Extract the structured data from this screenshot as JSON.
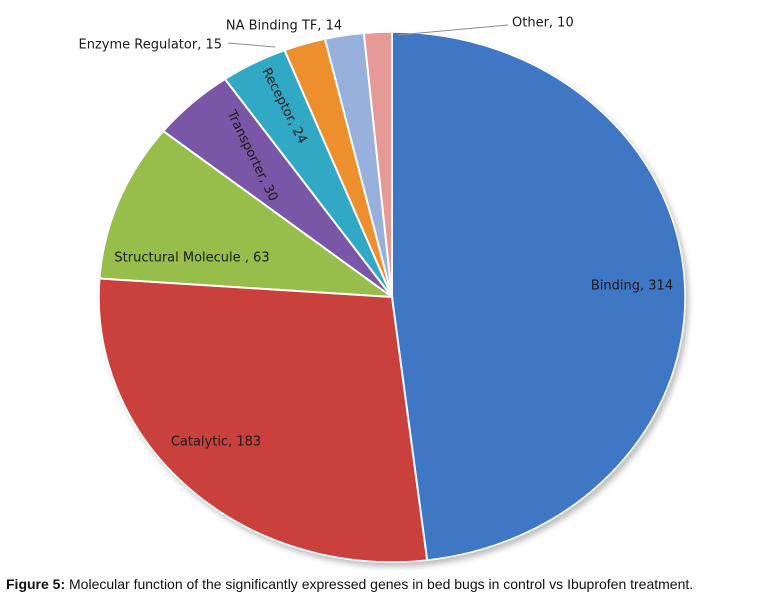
{
  "chart_data": {
    "type": "pie",
    "title": "",
    "slices": [
      {
        "label": "Binding, 314",
        "name": "Binding",
        "value": 314,
        "color": "#3f77c4"
      },
      {
        "label": "Catalytic, 183",
        "name": "Catalytic",
        "value": 183,
        "color": "#c9403c"
      },
      {
        "label": "Structural Molecule , 63",
        "name": "Structural Molecule",
        "value": 63,
        "color": "#97be4c"
      },
      {
        "label": "Transporter, 30",
        "name": "Transporter",
        "value": 30,
        "color": "#7a57a6"
      },
      {
        "label": "Receptor, 24",
        "name": "Receptor",
        "value": 24,
        "color": "#32a9c4"
      },
      {
        "label": "Enzyme Regulator, 15",
        "name": "Enzyme Regulator",
        "value": 15,
        "color": "#ee8f2f"
      },
      {
        "label": "NA Binding TF, 14",
        "name": "NA Binding TF",
        "value": 14,
        "color": "#98b1dc"
      },
      {
        "label": "Other, 10",
        "name": "Other",
        "value": 10,
        "color": "#e59a98"
      }
    ],
    "start_angle_deg": 0,
    "direction": "clockwise",
    "legend": "none",
    "data_labels": "on-slice-and-leader-lines"
  },
  "caption": {
    "prefix": "Figure 5:",
    "text": " Molecular function of the significantly expressed genes in bed bugs in control vs Ibuprofen treatment."
  }
}
